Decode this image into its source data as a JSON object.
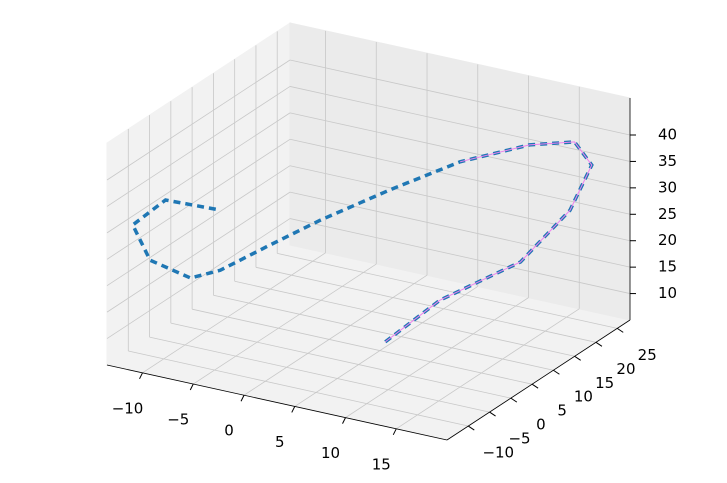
{
  "chart_data": {
    "type": "line3d",
    "xlim": [
      -13.5,
      20
    ],
    "ylim": [
      -15,
      28
    ],
    "zlim": [
      5,
      47
    ],
    "xticks": [
      {
        "value": -10,
        "label": "−10"
      },
      {
        "value": -5,
        "label": "−5"
      },
      0,
      5,
      10,
      15
    ],
    "yticks": [
      {
        "value": -10,
        "label": "−10"
      },
      {
        "value": -5,
        "label": "−5"
      },
      0,
      5,
      10,
      15,
      20,
      25
    ],
    "zticks": [
      10,
      15,
      20,
      25,
      30,
      35,
      40
    ],
    "grid": true,
    "series": [
      {
        "color": "#1f77b4",
        "style": "dashed",
        "x": [
          6.2,
          9.7,
          15.5,
          16.9,
          16.4,
          15.5,
          13.7,
          9.3,
          4.9,
          0.8,
          -2.5,
          -5.7,
          -8.2,
          -13.2,
          -11.3,
          -10.5,
          -7.7
        ],
        "y": [
          3.4,
          7.9,
          13.0,
          21.3,
          27.6,
          25.7,
          19.4,
          13.6,
          7.6,
          1.0,
          -3.0,
          -7.0,
          -8.0,
          -5.6,
          -14.2,
          -8.4,
          -2.2
        ],
        "z": [
          8,
          15,
          22,
          28,
          33,
          38,
          40,
          38,
          34,
          30,
          26,
          22,
          20,
          20,
          32,
          34,
          30
        ]
      },
      {
        "color": "violet",
        "style": "solid",
        "x": [
          6.2,
          9.7,
          15.5,
          16.9,
          16.4,
          15.5,
          13.7,
          9.3
        ],
        "y": [
          3.4,
          7.9,
          13.0,
          21.3,
          27.6,
          25.7,
          19.4,
          13.6
        ],
        "z": [
          8,
          15,
          22,
          28,
          33,
          38,
          40,
          38
        ]
      }
    ]
  }
}
